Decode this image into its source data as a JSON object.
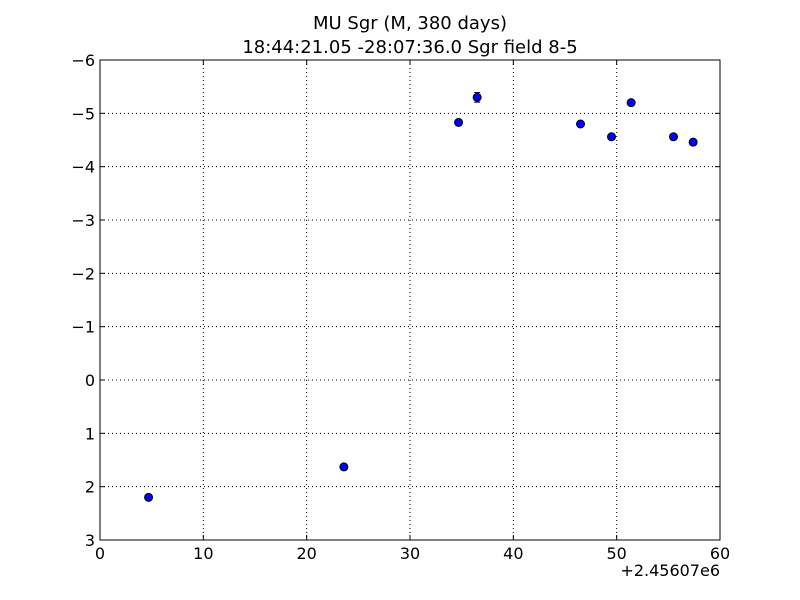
{
  "chart_data": {
    "type": "scatter",
    "title": "MU Sgr  (M, 380 days)",
    "subtitle": "18:44:21.05 -28:07:36.0 Sgr field 8-5",
    "xlabel": "",
    "ylabel": "",
    "x_offset_label": "+2.45607e6",
    "xlim": [
      0,
      60
    ],
    "ylim": [
      3,
      -6
    ],
    "y_inverted": true,
    "grid": true,
    "x_ticks": [
      0,
      10,
      20,
      30,
      40,
      50,
      60
    ],
    "x_tick_labels": [
      "0",
      "10",
      "20",
      "30",
      "40",
      "50",
      "60"
    ],
    "y_ticks": [
      -6,
      -5,
      -4,
      -3,
      -2,
      -1,
      0,
      1,
      2,
      3
    ],
    "y_tick_labels": [
      "−6",
      "−5",
      "−4",
      "−3",
      "−2",
      "−1",
      "0",
      "1",
      "2",
      "3"
    ],
    "marker_color": "#0000ff",
    "points": [
      {
        "x": 4.7,
        "y": 2.2,
        "err": 0.0
      },
      {
        "x": 23.6,
        "y": 1.63,
        "err": 0.0
      },
      {
        "x": 34.7,
        "y": -4.83,
        "err": 0.0
      },
      {
        "x": 36.5,
        "y": -5.3,
        "err": 0.09
      },
      {
        "x": 46.5,
        "y": -4.8,
        "err": 0.0
      },
      {
        "x": 49.5,
        "y": -4.56,
        "err": 0.0
      },
      {
        "x": 51.4,
        "y": -5.2,
        "err": 0.0
      },
      {
        "x": 55.5,
        "y": -4.56,
        "err": 0.0
      },
      {
        "x": 57.4,
        "y": -4.46,
        "err": 0.0
      }
    ]
  }
}
